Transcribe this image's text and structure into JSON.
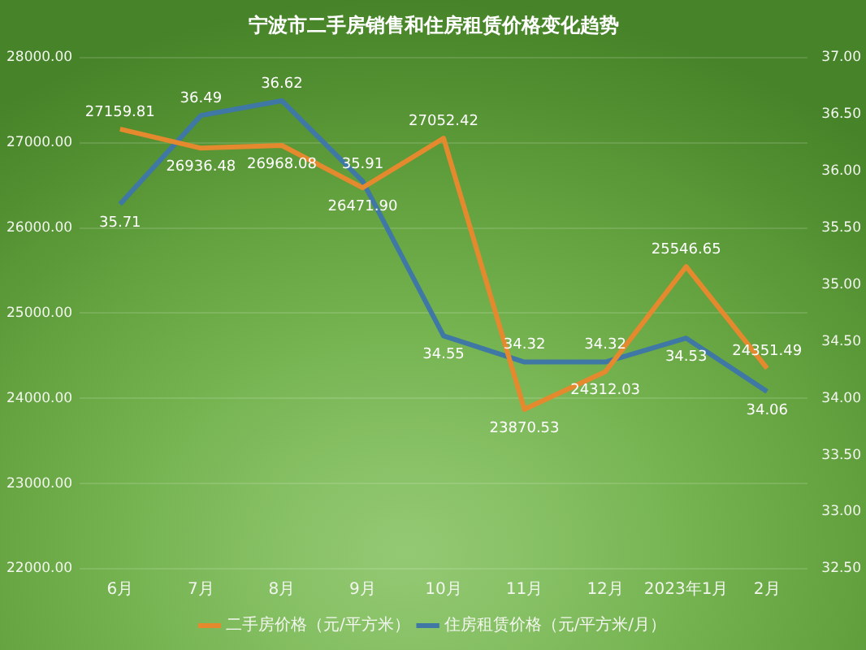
{
  "chart_data": {
    "type": "line",
    "title": "宁波市二手房销售和住房租赁价格变化趋势",
    "categories": [
      "6月",
      "7月",
      "8月",
      "9月",
      "10月",
      "11月",
      "12月",
      "2023年1月",
      "2月"
    ],
    "series": [
      {
        "name": "二手房价格（元/平方米）",
        "color": "#e5892e",
        "values": [
          27159.81,
          26936.48,
          26968.08,
          26471.9,
          27052.42,
          23870.53,
          24312.03,
          25546.65,
          24351.49
        ],
        "value_labels": [
          "27159.81",
          "26936.48",
          "26968.08",
          "26471.90",
          "27052.42",
          "23870.53",
          "24312.03",
          "25546.65",
          "24351.49"
        ]
      },
      {
        "name": "住房租赁价格（元/平方米/月）",
        "color": "#3f78a4",
        "axis": "y2",
        "values": [
          35.71,
          36.49,
          36.62,
          35.91,
          34.55,
          34.32,
          34.32,
          34.53,
          34.06
        ],
        "value_labels": [
          "35.71",
          "36.49",
          "36.62",
          "35.91",
          "34.55",
          "34.32",
          "34.32",
          "34.53",
          "34.06"
        ]
      }
    ],
    "ylim": [
      22000,
      28000
    ],
    "yticks": [
      {
        "value": 22000,
        "label": "22000.00"
      },
      {
        "value": 23000,
        "label": "23000.00"
      },
      {
        "value": 24000,
        "label": "24000.00"
      },
      {
        "value": 25000,
        "label": "25000.00"
      },
      {
        "value": 26000,
        "label": "26000.00"
      },
      {
        "value": 27000,
        "label": "27000.00"
      },
      {
        "value": 28000,
        "label": "28000.00"
      }
    ],
    "y2lim": [
      32.5,
      37
    ],
    "y2ticks": [
      {
        "value": 32.5,
        "label": "32.50"
      },
      {
        "value": 33,
        "label": "33.00"
      },
      {
        "value": 33.5,
        "label": "33.50"
      },
      {
        "value": 34,
        "label": "34.00"
      },
      {
        "value": 34.5,
        "label": "34.50"
      },
      {
        "value": 35,
        "label": "35.00"
      },
      {
        "value": 35.5,
        "label": "35.50"
      },
      {
        "value": 36,
        "label": "36.00"
      },
      {
        "value": 36.5,
        "label": "36.50"
      },
      {
        "value": 37,
        "label": "37.00"
      }
    ],
    "grid": "y",
    "legend": "bottom",
    "marker": "none",
    "line_style": "solid"
  }
}
